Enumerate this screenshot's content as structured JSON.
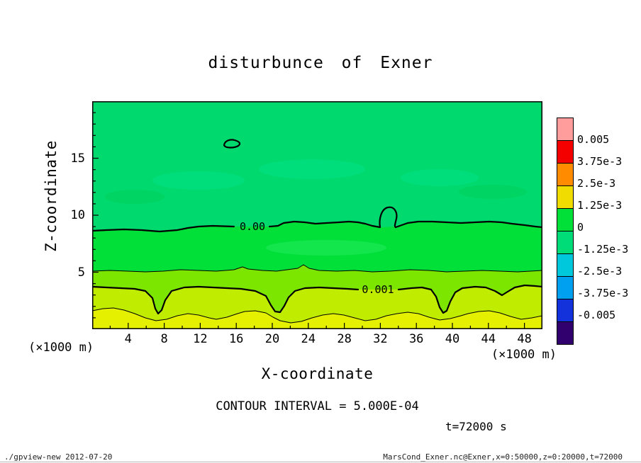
{
  "chart_data": {
    "type": "heatmap",
    "subtype": "filled-contour",
    "title": "disturbunce of Exner",
    "xlabel": "X-coordinate",
    "ylabel": "Z-coordinate",
    "x_unit_label": "(×1000 m)",
    "y_unit_label": "(×1000 m)",
    "xlim": [
      0,
      50
    ],
    "ylim": [
      0,
      20
    ],
    "xticks": [
      4,
      8,
      12,
      16,
      20,
      24,
      28,
      32,
      36,
      40,
      44,
      48
    ],
    "yticks": [
      5,
      10,
      15
    ],
    "grid": false,
    "contour_interval": 0.0005,
    "contours": [
      {
        "level": 0.0,
        "label": "0.00",
        "style": "thick",
        "mean_z_km": 9.0
      },
      {
        "level": 0.0005,
        "label": "",
        "style": "thin",
        "mean_z_km": 5.2
      },
      {
        "level": 0.001,
        "label": "0.001",
        "style": "thick",
        "mean_z_km": 3.4
      },
      {
        "level": 0.0015,
        "label": "",
        "style": "thin",
        "mean_z_km": 1.4
      }
    ],
    "features": [
      {
        "name": "small-closed-contour",
        "level": 0.0,
        "x_km": 15.5,
        "z_km": 16.2
      },
      {
        "name": "small-closed-contour",
        "level": 0.0,
        "x_km": 33.0,
        "z_km": 10.5
      }
    ],
    "plot_bands": [
      {
        "value_range": "-0.00125 to 0",
        "color": "#00D96E"
      },
      {
        "value_range": "0 to 0.0005",
        "color": "#00E038"
      },
      {
        "value_range": "0.0005 to 0.001",
        "color": "#7DE600"
      },
      {
        "value_range": "0.001 to 0.0015",
        "color": "#C0EC00"
      },
      {
        "value_range": "0.0015 and above",
        "color": "#E4F000"
      }
    ],
    "colorbar": {
      "position": "right",
      "labels": [
        "0.005",
        "3.75e-3",
        "2.5e-3",
        "1.25e-3",
        "0",
        "-1.25e-3",
        "-2.5e-3",
        "-3.75e-3",
        "-0.005"
      ],
      "colors": [
        "#FF9C9C",
        "#F40000",
        "#FF8C00",
        "#F0DC00",
        "#00E038",
        "#00DC78",
        "#00C8DC",
        "#00A0F0",
        "#1432DC",
        "#32006E"
      ]
    }
  },
  "annotations": {
    "contour_interval_note": "CONTOUR INTERVAL = 5.000E-04",
    "time_label": "t=72000 s"
  },
  "footer": {
    "left": "./gpview-new  2012-07-20",
    "right": "MarsCond_Exner.nc@Exner,x=0:50000,z=0:20000,t=72000"
  }
}
